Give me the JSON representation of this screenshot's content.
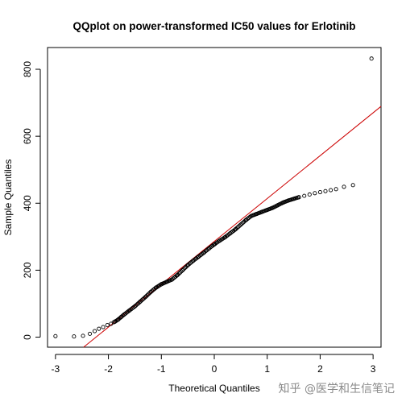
{
  "chart_data": {
    "type": "scatter",
    "title": "QQplot on power-transformed IC50 values for Erlotinib",
    "xlabel": "Theoretical Quantiles",
    "ylabel": "Sample Quantiles",
    "xlim": [
      -3.15,
      3.15
    ],
    "ylim": [
      -30,
      865
    ],
    "xticks": [
      -3,
      -2,
      -1,
      0,
      1,
      2,
      3
    ],
    "yticks": [
      0,
      200,
      400,
      600,
      800
    ],
    "grid": false,
    "colors": {
      "points": "#000000",
      "reference_line": "#cc0000"
    },
    "reference_line": {
      "intercept": 286,
      "slope": 128
    },
    "anchor_points": [
      [
        -3.0,
        3
      ],
      [
        -2.65,
        2
      ],
      [
        -2.48,
        4
      ],
      [
        -2.35,
        10
      ],
      [
        -2.26,
        18
      ],
      [
        -2.18,
        25
      ],
      [
        -2.1,
        30
      ],
      [
        -2.02,
        36
      ],
      [
        -1.95,
        40
      ],
      [
        -1.88,
        46
      ],
      [
        -1.82,
        52
      ],
      [
        -1.76,
        60
      ],
      [
        -1.7,
        68
      ],
      [
        -1.6,
        80
      ],
      [
        -1.5,
        92
      ],
      [
        -1.4,
        106
      ],
      [
        -1.3,
        120
      ],
      [
        -1.2,
        135
      ],
      [
        -1.1,
        148
      ],
      [
        -1.0,
        158
      ],
      [
        -0.9,
        165
      ],
      [
        -0.8,
        172
      ],
      [
        -0.7,
        185
      ],
      [
        -0.6,
        200
      ],
      [
        -0.5,
        215
      ],
      [
        -0.4,
        228
      ],
      [
        -0.3,
        240
      ],
      [
        -0.2,
        252
      ],
      [
        -0.1,
        265
      ],
      [
        0.0,
        277
      ],
      [
        0.1,
        288
      ],
      [
        0.2,
        298
      ],
      [
        0.3,
        310
      ],
      [
        0.4,
        322
      ],
      [
        0.5,
        336
      ],
      [
        0.6,
        350
      ],
      [
        0.7,
        362
      ],
      [
        0.8,
        368
      ],
      [
        0.9,
        374
      ],
      [
        1.0,
        380
      ],
      [
        1.1,
        386
      ],
      [
        1.2,
        394
      ],
      [
        1.3,
        402
      ],
      [
        1.4,
        408
      ],
      [
        1.5,
        413
      ],
      [
        1.6,
        418
      ],
      [
        1.7,
        422
      ],
      [
        1.8,
        426
      ],
      [
        1.9,
        430
      ],
      [
        2.0,
        433
      ],
      [
        2.1,
        436
      ],
      [
        2.2,
        439
      ],
      [
        2.3,
        442
      ],
      [
        2.45,
        449
      ],
      [
        2.62,
        454
      ],
      [
        2.97,
        832
      ]
    ]
  },
  "watermark": "知乎 @医学和生信笔记"
}
